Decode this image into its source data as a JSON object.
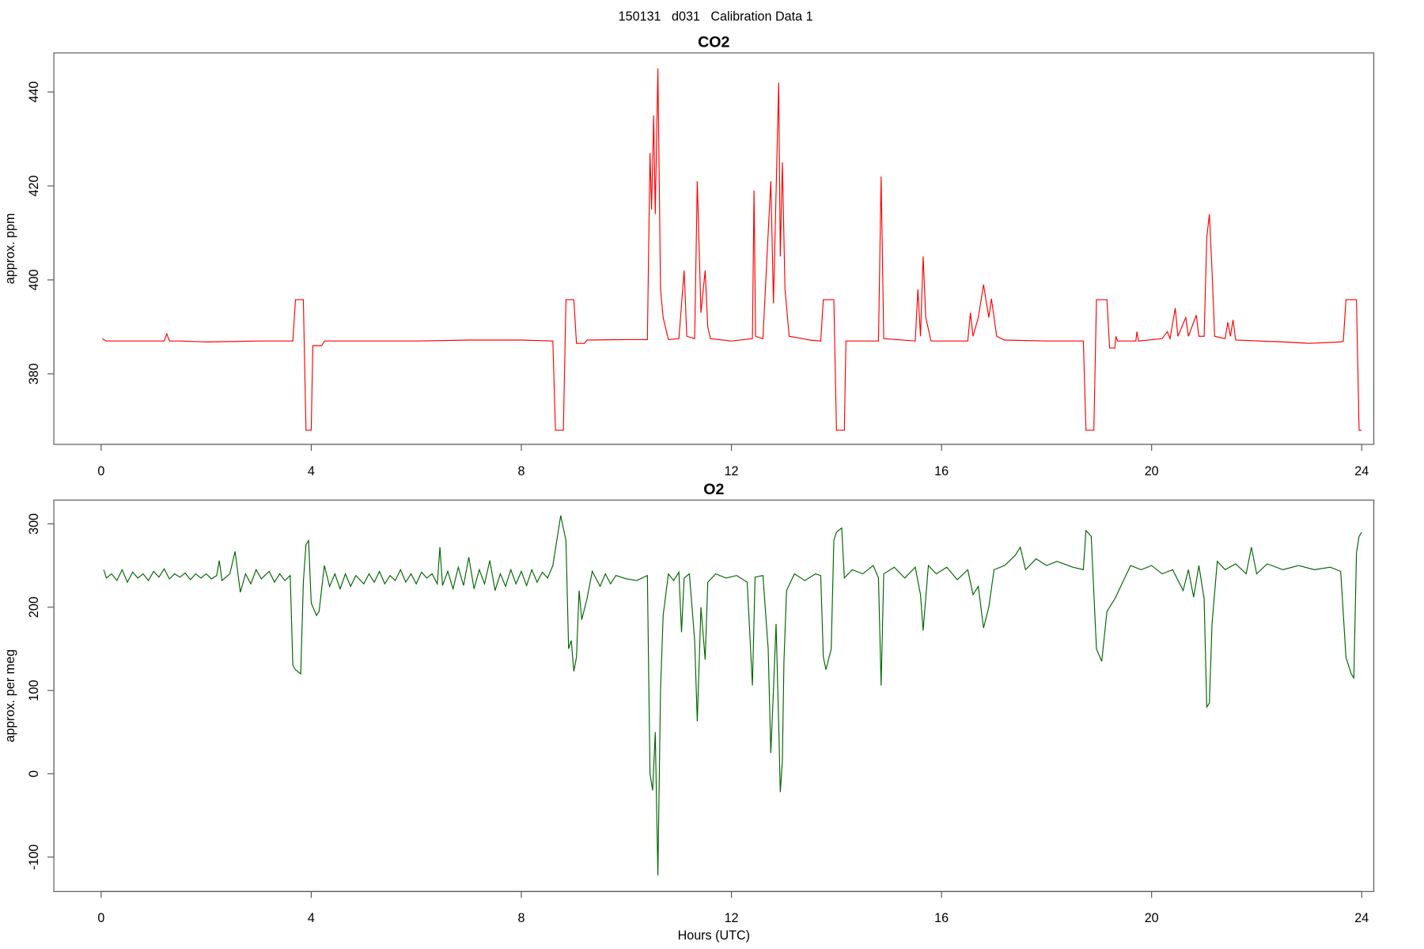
{
  "title": "150131   d031   Calibration Data 1",
  "chart_data": [
    {
      "type": "line",
      "title": "CO2",
      "ylabel": "approx. ppm",
      "xlim": [
        -0.9,
        24.23
      ],
      "xticks": [
        0,
        4,
        8,
        12,
        16,
        20,
        24
      ],
      "ylim": [
        365,
        448.3
      ],
      "yticks": [
        380,
        400,
        420,
        440
      ],
      "x": [
        0.02,
        0.1,
        1.2,
        1.25,
        1.3,
        1.5,
        2,
        3,
        3.6,
        3.65,
        3.7,
        3.85,
        3.9,
        4.0,
        4.03,
        4.2,
        4.25,
        5,
        6,
        7,
        8,
        8.6,
        8.65,
        8.8,
        8.85,
        9.0,
        9.05,
        9.2,
        9.25,
        10,
        10.4,
        10.45,
        10.48,
        10.52,
        10.55,
        10.6,
        10.65,
        10.7,
        10.8,
        11.0,
        11.1,
        11.15,
        11.3,
        11.35,
        11.42,
        11.5,
        11.55,
        11.6,
        12,
        12.4,
        12.43,
        12.46,
        12.6,
        12.7,
        12.75,
        12.8,
        12.9,
        12.93,
        12.97,
        13.02,
        13.1,
        13.5,
        13.7,
        13.75,
        13.95,
        14.0,
        14.15,
        14.18,
        14.8,
        14.85,
        14.9,
        15.5,
        15.55,
        15.6,
        15.65,
        15.7,
        15.8,
        16.5,
        16.55,
        16.6,
        16.7,
        16.8,
        16.9,
        16.95,
        17.05,
        17.2,
        18,
        18.7,
        18.75,
        18.9,
        18.95,
        19.15,
        19.2,
        19.3,
        19.32,
        19.35,
        19.7,
        19.72,
        19.75,
        20.2,
        20.3,
        20.35,
        20.45,
        20.5,
        20.65,
        20.7,
        20.85,
        20.9,
        21.0,
        21.05,
        21.1,
        21.15,
        21.2,
        21.4,
        21.45,
        21.5,
        21.55,
        21.6,
        22.5,
        23.0,
        23.6,
        23.65,
        23.7,
        23.9,
        23.95,
        24.0
      ],
      "series": [
        {
          "color": "#ff0000",
          "values": [
            387.5,
            387,
            387,
            388.5,
            387,
            387,
            386.8,
            387,
            387,
            387,
            395.8,
            395.8,
            368,
            368,
            386,
            386,
            387,
            387,
            387,
            387.2,
            387.2,
            387,
            368,
            368,
            395.8,
            395.8,
            386.5,
            386.5,
            387.2,
            387.3,
            387.3,
            427,
            415,
            435,
            414,
            445,
            398,
            392,
            387.3,
            387.5,
            402,
            388,
            387.5,
            421,
            393,
            402,
            390,
            387.5,
            387,
            387.5,
            419,
            388,
            387.5,
            410,
            421,
            395,
            442,
            405,
            425,
            398,
            388,
            387.2,
            387,
            395.8,
            395.8,
            368,
            368,
            387,
            387,
            422,
            387.5,
            387,
            398,
            388,
            405,
            392,
            387,
            387,
            393,
            388,
            392,
            399,
            392,
            396,
            388,
            387.2,
            387,
            387,
            368,
            368,
            395.8,
            395.8,
            385.5,
            385.5,
            388,
            387,
            387,
            389,
            387,
            387.5,
            389,
            387.5,
            394,
            388,
            392,
            388,
            392.5,
            388,
            388,
            409,
            414,
            402,
            388,
            387.5,
            391,
            388,
            391.5,
            387.2,
            386.8,
            386.5,
            386.8,
            387,
            395.8,
            395.8,
            368,
            368
          ]
        }
      ]
    },
    {
      "type": "line",
      "title": "O2",
      "ylabel": "approx. per meg",
      "xlabel": "Hours (UTC)",
      "xlim": [
        -0.9,
        24.23
      ],
      "xticks": [
        0,
        4,
        8,
        12,
        16,
        20,
        24
      ],
      "ylim": [
        -141.3,
        328.6
      ],
      "yticks": [
        -100,
        0,
        100,
        200,
        300
      ],
      "x": [
        0.05,
        0.1,
        0.2,
        0.3,
        0.4,
        0.5,
        0.6,
        0.7,
        0.8,
        0.9,
        1.0,
        1.1,
        1.2,
        1.3,
        1.4,
        1.5,
        1.6,
        1.7,
        1.8,
        1.9,
        2.0,
        2.1,
        2.2,
        2.25,
        2.3,
        2.45,
        2.55,
        2.65,
        2.75,
        2.85,
        2.95,
        3.05,
        3.2,
        3.3,
        3.4,
        3.5,
        3.6,
        3.65,
        3.7,
        3.8,
        3.85,
        3.9,
        3.95,
        4.0,
        4.1,
        4.15,
        4.25,
        4.35,
        4.45,
        4.55,
        4.65,
        4.75,
        4.85,
        5.0,
        5.1,
        5.2,
        5.3,
        5.4,
        5.5,
        5.6,
        5.7,
        5.8,
        5.9,
        6.0,
        6.1,
        6.2,
        6.3,
        6.4,
        6.45,
        6.5,
        6.6,
        6.7,
        6.8,
        6.9,
        7.0,
        7.1,
        7.2,
        7.3,
        7.4,
        7.5,
        7.6,
        7.7,
        7.8,
        7.9,
        8.0,
        8.1,
        8.2,
        8.3,
        8.4,
        8.5,
        8.6,
        8.7,
        8.75,
        8.85,
        8.9,
        8.95,
        9.0,
        9.05,
        9.1,
        9.15,
        9.25,
        9.35,
        9.5,
        9.6,
        9.7,
        9.8,
        10.0,
        10.2,
        10.4,
        10.45,
        10.5,
        10.55,
        10.6,
        10.65,
        10.7,
        10.8,
        10.9,
        11.0,
        11.05,
        11.1,
        11.2,
        11.3,
        11.35,
        11.42,
        11.5,
        11.55,
        11.7,
        11.9,
        12.1,
        12.3,
        12.4,
        12.45,
        12.6,
        12.7,
        12.75,
        12.8,
        12.85,
        12.9,
        12.93,
        12.97,
        13.0,
        13.05,
        13.2,
        13.4,
        13.6,
        13.7,
        13.75,
        13.8,
        13.9,
        13.95,
        14.0,
        14.1,
        14.15,
        14.3,
        14.5,
        14.7,
        14.8,
        14.85,
        14.9,
        15.1,
        15.3,
        15.5,
        15.6,
        15.65,
        15.75,
        15.9,
        16.1,
        16.3,
        16.5,
        16.6,
        16.7,
        16.8,
        16.9,
        17.0,
        17.2,
        17.4,
        17.5,
        17.6,
        17.8,
        18.0,
        18.2,
        18.5,
        18.7,
        18.75,
        18.85,
        18.95,
        19.05,
        19.15,
        19.3,
        19.45,
        19.6,
        19.8,
        20.0,
        20.2,
        20.4,
        20.6,
        20.7,
        20.8,
        20.9,
        21.0,
        21.05,
        21.1,
        21.15,
        21.25,
        21.4,
        21.6,
        21.8,
        21.9,
        22.0,
        22.2,
        22.5,
        22.8,
        23.1,
        23.4,
        23.6,
        23.7,
        23.8,
        23.85,
        23.9,
        23.95,
        24.0
      ],
      "series": [
        {
          "color": "#006400",
          "values": [
            245,
            235,
            240,
            232,
            245,
            230,
            242,
            235,
            240,
            232,
            243,
            236,
            246,
            234,
            240,
            236,
            241,
            233,
            240,
            235,
            240,
            234,
            238,
            256,
            232,
            240,
            267,
            218,
            240,
            228,
            245,
            234,
            243,
            230,
            240,
            232,
            238,
            130,
            125,
            120,
            230,
            275,
            280,
            205,
            190,
            195,
            250,
            225,
            240,
            222,
            240,
            225,
            238,
            228,
            240,
            230,
            243,
            228,
            238,
            232,
            245,
            230,
            240,
            228,
            242,
            235,
            240,
            228,
            272,
            226,
            243,
            222,
            248,
            226,
            260,
            222,
            245,
            228,
            256,
            220,
            240,
            225,
            245,
            228,
            243,
            226,
            245,
            230,
            242,
            235,
            250,
            290,
            310,
            280,
            150,
            160,
            123,
            140,
            220,
            185,
            210,
            243,
            225,
            240,
            228,
            238,
            234,
            232,
            238,
            0,
            -20,
            50,
            -122,
            100,
            190,
            240,
            232,
            242,
            170,
            235,
            240,
            160,
            63,
            200,
            137,
            230,
            240,
            235,
            238,
            230,
            106,
            236,
            238,
            150,
            25,
            100,
            180,
            60,
            -22,
            15,
            135,
            220,
            240,
            232,
            240,
            238,
            140,
            125,
            150,
            280,
            290,
            295,
            235,
            245,
            240,
            250,
            235,
            106,
            240,
            248,
            235,
            248,
            215,
            172,
            250,
            240,
            248,
            233,
            245,
            215,
            225,
            175,
            200,
            245,
            250,
            262,
            272,
            245,
            258,
            250,
            255,
            248,
            245,
            292,
            285,
            150,
            135,
            195,
            210,
            230,
            250,
            245,
            250,
            240,
            245,
            220,
            245,
            212,
            250,
            210,
            80,
            85,
            180,
            255,
            245,
            252,
            240,
            272,
            240,
            252,
            245,
            250,
            245,
            248,
            243,
            140,
            120,
            115,
            265,
            285,
            290
          ]
        }
      ]
    }
  ]
}
